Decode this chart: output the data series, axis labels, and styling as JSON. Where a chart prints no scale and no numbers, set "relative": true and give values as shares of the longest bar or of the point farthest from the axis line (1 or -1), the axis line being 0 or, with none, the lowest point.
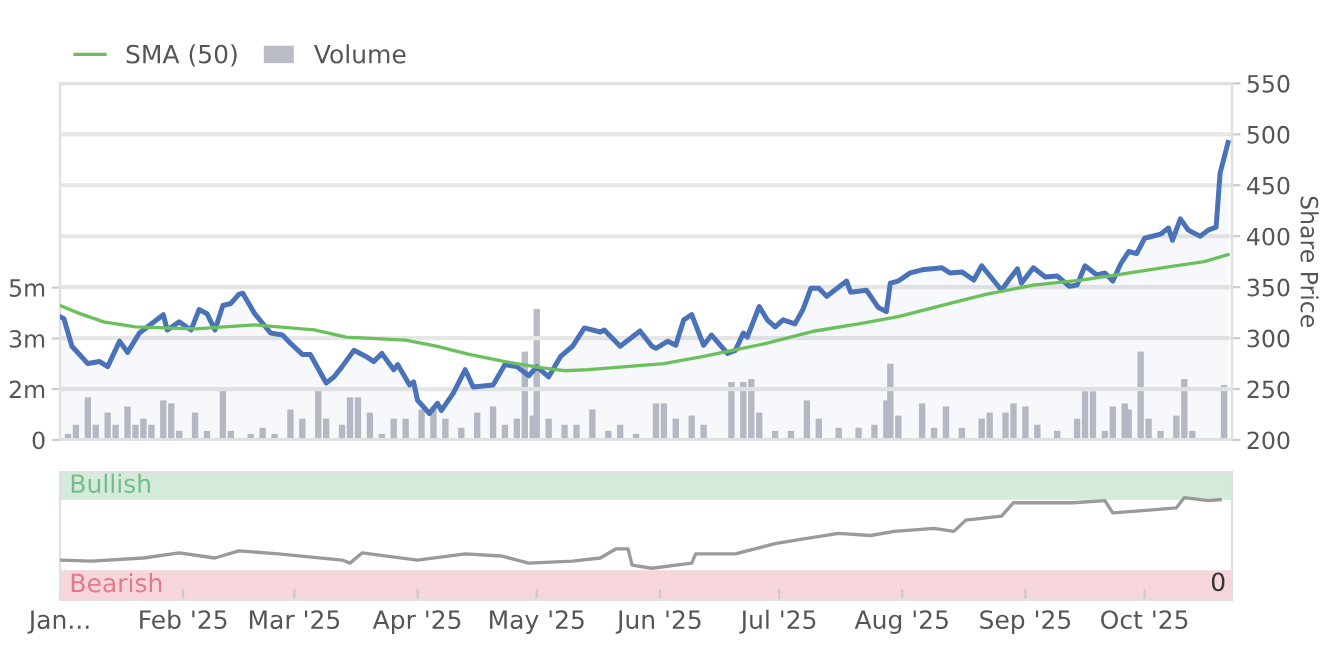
{
  "chart_data": [
    {
      "type": "line",
      "xlim": [
        "2025-01-01",
        "2025-10-23"
      ],
      "ylim": [
        0,
        11.7
      ],
      "yticks": [
        0,
        {
          "value": 1.67,
          "label": "2m"
        },
        {
          "value": 3.33,
          "label": "3m"
        },
        {
          "value": 5,
          "label": "5m"
        }
      ],
      "y2lim": [
        200,
        550
      ],
      "y2ticks": [
        200,
        250,
        300,
        350,
        400,
        450,
        500,
        550
      ],
      "y2label": "Share Price",
      "grid": "y",
      "legend": "top left",
      "tick_labels": "y",
      "series": [
        {
          "type": "area",
          "axis": "y2",
          "color": "#4a72b8",
          "x": [
            "2025-01-01",
            "2025-01-02",
            "2025-01-04",
            "2025-01-08",
            "2025-01-11",
            "2025-01-13",
            "2025-01-16",
            "2025-01-18",
            "2025-01-21",
            "2025-01-27",
            "2025-01-28",
            "2025-01-31",
            "2025-02-03",
            "2025-02-05",
            "2025-02-07",
            "2025-02-09",
            "2025-02-11",
            "2025-02-13",
            "2025-02-15",
            "2025-02-16",
            "2025-02-19",
            "2025-02-23",
            "2025-02-26",
            "2025-02-28",
            "2025-03-03",
            "2025-03-05",
            "2025-03-09",
            "2025-03-11",
            "2025-03-13",
            "2025-03-16",
            "2025-03-19",
            "2025-03-21",
            "2025-03-23",
            "2025-03-26",
            "2025-03-27",
            "2025-03-30",
            "2025-03-31",
            "2025-04-01",
            "2025-04-04",
            "2025-04-06",
            "2025-04-07",
            "2025-04-10",
            "2025-04-13",
            "2025-04-15",
            "2025-04-20",
            "2025-04-23",
            "2025-04-26",
            "2025-04-29",
            "2025-05-01",
            "2025-05-04",
            "2025-05-07",
            "2025-05-10",
            "2025-05-13",
            "2025-05-17",
            "2025-05-18",
            "2025-05-22",
            "2025-05-27",
            "2025-05-30",
            "2025-05-31",
            "2025-06-03",
            "2025-06-05",
            "2025-06-07",
            "2025-06-09",
            "2025-06-12",
            "2025-06-14",
            "2025-06-18",
            "2025-06-20",
            "2025-06-22",
            "2025-06-23",
            "2025-06-26",
            "2025-06-28",
            "2025-06-30",
            "2025-07-02",
            "2025-07-05",
            "2025-07-07",
            "2025-07-09",
            "2025-07-11",
            "2025-07-13",
            "2025-07-18",
            "2025-07-19",
            "2025-07-23",
            "2025-07-26",
            "2025-07-28",
            "2025-07-29",
            "2025-07-31",
            "2025-08-03",
            "2025-08-06",
            "2025-08-11",
            "2025-08-13",
            "2025-08-16",
            "2025-08-19",
            "2025-08-21",
            "2025-08-26",
            "2025-08-28",
            "2025-08-30",
            "2025-08-31",
            "2025-09-03",
            "2025-09-06",
            "2025-09-09",
            "2025-09-12",
            "2025-09-14",
            "2025-09-16",
            "2025-09-19",
            "2025-09-21",
            "2025-09-23",
            "2025-09-25",
            "2025-09-27",
            "2025-09-29",
            "2025-10-01",
            "2025-10-05",
            "2025-10-07",
            "2025-10-08",
            "2025-10-10",
            "2025-10-12",
            "2025-10-15",
            "2025-10-17",
            "2025-10-19",
            "2025-10-20",
            "2025-10-22"
          ],
          "values": [
            321,
            319,
            292,
            275,
            277,
            272,
            297,
            286,
            305,
            323,
            308,
            316,
            308,
            328,
            324,
            308,
            332,
            334,
            343,
            344,
            324,
            305,
            303,
            295,
            284,
            284,
            256,
            262,
            272,
            288,
            282,
            277,
            285,
            269,
            274,
            254,
            257,
            239,
            226,
            236,
            229,
            246,
            269,
            252,
            254,
            274,
            272,
            263,
            272,
            262,
            282,
            292,
            310,
            306,
            308,
            292,
            307,
            292,
            290,
            297,
            293,
            318,
            323,
            293,
            303,
            285,
            288,
            305,
            301,
            331,
            318,
            311,
            318,
            314,
            328,
            349,
            349,
            341,
            356,
            345,
            347,
            330,
            326,
            354,
            356,
            364,
            367,
            369,
            364,
            365,
            357,
            371,
            347,
            358,
            368,
            354,
            369,
            360,
            361,
            351,
            352,
            371,
            362,
            364,
            356,
            373,
            385,
            383,
            398,
            402,
            408,
            396,
            417,
            406,
            400,
            406,
            409,
            462,
            492
          ]
        },
        {
          "type": "line",
          "axis": "y2",
          "name": "SMA (50)",
          "color": "#6cc05c",
          "x": [
            "2025-01-01",
            "2025-01-06",
            "2025-01-12",
            "2025-01-20",
            "2025-02-04",
            "2025-02-19",
            "2025-03-06",
            "2025-03-14",
            "2025-03-29",
            "2025-04-06",
            "2025-04-14",
            "2025-04-23",
            "2025-05-02",
            "2025-05-08",
            "2025-05-14",
            "2025-06-02",
            "2025-06-12",
            "2025-06-28",
            "2025-07-10",
            "2025-07-21",
            "2025-07-31",
            "2025-08-13",
            "2025-08-22",
            "2025-09-03",
            "2025-09-15",
            "2025-09-24",
            "2025-10-07",
            "2025-10-16",
            "2025-10-22"
          ],
          "values": [
            332,
            324,
            316,
            311,
            309,
            313,
            308,
            301,
            298,
            292,
            284,
            277,
            271,
            268,
            269,
            275,
            282,
            295,
            307,
            314,
            321,
            334,
            343,
            352,
            357,
            362,
            370,
            375,
            382
          ]
        },
        {
          "type": "bar",
          "axis": "y",
          "name": "Volume",
          "color": "#b9bcc4",
          "x": [
            "2025-01-03",
            "2025-01-05",
            "2025-01-08",
            "2025-01-10",
            "2025-01-13",
            "2025-01-15",
            "2025-01-18",
            "2025-01-20",
            "2025-01-22",
            "2025-01-24",
            "2025-01-27",
            "2025-01-29",
            "2025-01-31",
            "2025-02-04",
            "2025-02-07",
            "2025-02-11",
            "2025-02-13",
            "2025-02-18",
            "2025-02-21",
            "2025-02-24",
            "2025-02-28",
            "2025-03-03",
            "2025-03-07",
            "2025-03-09",
            "2025-03-13",
            "2025-03-15",
            "2025-03-17",
            "2025-03-20",
            "2025-03-23",
            "2025-03-26",
            "2025-03-29",
            "2025-04-02",
            "2025-04-05",
            "2025-04-08",
            "2025-04-12",
            "2025-04-16",
            "2025-04-20",
            "2025-04-23",
            "2025-04-26",
            "2025-04-28",
            "2025-04-30",
            "2025-05-01",
            "2025-05-04",
            "2025-05-08",
            "2025-05-11",
            "2025-05-15",
            "2025-05-19",
            "2025-05-22",
            "2025-05-26",
            "2025-05-31",
            "2025-06-02",
            "2025-06-05",
            "2025-06-09",
            "2025-06-12",
            "2025-06-19",
            "2025-06-22",
            "2025-06-24",
            "2025-06-26",
            "2025-06-30",
            "2025-07-04",
            "2025-07-08",
            "2025-07-11",
            "2025-07-16",
            "2025-07-21",
            "2025-07-25",
            "2025-07-28",
            "2025-07-29",
            "2025-07-31",
            "2025-08-06",
            "2025-08-09",
            "2025-08-12",
            "2025-08-16",
            "2025-08-21",
            "2025-08-23",
            "2025-08-27",
            "2025-08-29",
            "2025-09-01",
            "2025-09-04",
            "2025-09-09",
            "2025-09-14",
            "2025-09-16",
            "2025-09-18",
            "2025-09-21",
            "2025-09-23",
            "2025-09-26",
            "2025-09-27",
            "2025-09-30",
            "2025-10-02",
            "2025-10-05",
            "2025-10-09",
            "2025-10-11",
            "2025-10-13",
            "2025-10-21"
          ],
          "values": [
            0.2,
            0.5,
            1.4,
            0.5,
            0.9,
            0.5,
            1.1,
            0.5,
            0.7,
            0.5,
            1.3,
            1.2,
            0.3,
            0.9,
            0.3,
            1.7,
            0.3,
            0.2,
            0.4,
            0.2,
            1.0,
            0.7,
            1.7,
            0.7,
            0.5,
            1.4,
            1.4,
            0.9,
            0.2,
            0.7,
            0.7,
            1.0,
            1.1,
            0.7,
            0.4,
            0.9,
            1.1,
            0.5,
            0.7,
            2.9,
            0.8,
            4.3,
            0.7,
            0.5,
            0.5,
            1.0,
            0.3,
            0.5,
            0.2,
            1.2,
            1.2,
            0.7,
            0.8,
            0.5,
            1.9,
            1.9,
            2.0,
            0.9,
            0.3,
            0.3,
            1.3,
            0.7,
            0.4,
            0.4,
            0.5,
            1.3,
            2.5,
            0.8,
            1.2,
            0.4,
            1.1,
            0.4,
            0.7,
            0.9,
            0.9,
            1.2,
            1.1,
            0.5,
            0.3,
            0.7,
            1.6,
            1.6,
            0.3,
            1.1,
            1.2,
            1.0,
            2.9,
            0.7,
            0.3,
            0.8,
            2.0,
            0.3,
            1.8
          ]
        }
      ]
    },
    {
      "type": "line",
      "relative": true,
      "xlim": [
        "2025-01-01",
        "2025-10-23"
      ],
      "xticks": [
        {
          "value": "2025-01-01",
          "label": "Jan..."
        },
        {
          "value": "2025-02-01",
          "label": "Feb '25"
        },
        {
          "value": "2025-03-01",
          "label": "Mar '25"
        },
        {
          "value": "2025-04-01",
          "label": "Apr '25"
        },
        {
          "value": "2025-05-01",
          "label": "May '25"
        },
        {
          "value": "2025-06-01",
          "label": "Jun '25"
        },
        {
          "value": "2025-07-01",
          "label": "Jul '25"
        },
        {
          "value": "2025-08-01",
          "label": "Aug '25"
        },
        {
          "value": "2025-09-01",
          "label": "Sep '25"
        },
        {
          "value": "2025-10-01",
          "label": "Oct '25"
        }
      ],
      "tick_labels": "x",
      "bands": [
        {
          "axis": "y",
          "from": 0.98,
          "to": 1.25,
          "label": "Bullish",
          "color": "#d4eadb"
        },
        {
          "axis": "y",
          "from": 0,
          "to": 0.29,
          "label": "Bearish",
          "color": "#f6d5db"
        }
      ],
      "annotations": [
        "0"
      ],
      "series": [
        {
          "color": "#9a9a9a",
          "x": [
            "2025-01-01",
            "2025-01-09",
            "2025-01-22",
            "2025-01-31",
            "2025-02-09",
            "2025-02-15",
            "2025-02-25",
            "2025-03-13",
            "2025-03-15",
            "2025-03-18",
            "2025-04-01",
            "2025-04-13",
            "2025-04-22",
            "2025-04-29",
            "2025-05-10",
            "2025-05-17",
            "2025-05-21",
            "2025-05-24",
            "2025-05-25",
            "2025-05-30",
            "2025-06-07",
            "2025-06-09",
            "2025-06-10",
            "2025-06-20",
            "2025-06-30",
            "2025-07-06",
            "2025-07-16",
            "2025-07-24",
            "2025-07-30",
            "2025-08-09",
            "2025-08-14",
            "2025-08-17",
            "2025-08-26",
            "2025-08-29",
            "2025-09-13",
            "2025-09-21",
            "2025-09-23",
            "2025-10-03",
            "2025-10-09",
            "2025-10-11",
            "2025-10-17",
            "2025-10-20"
          ],
          "values": [
            0.39,
            0.38,
            0.41,
            0.46,
            0.41,
            0.48,
            0.45,
            0.39,
            0.36,
            0.46,
            0.39,
            0.45,
            0.43,
            0.36,
            0.38,
            0.41,
            0.5,
            0.5,
            0.34,
            0.31,
            0.35,
            0.36,
            0.45,
            0.45,
            0.55,
            0.59,
            0.65,
            0.63,
            0.67,
            0.7,
            0.67,
            0.78,
            0.82,
            0.95,
            0.95,
            0.97,
            0.85,
            0.88,
            0.9,
            1,
            0.97,
            0.98
          ]
        }
      ]
    }
  ]
}
